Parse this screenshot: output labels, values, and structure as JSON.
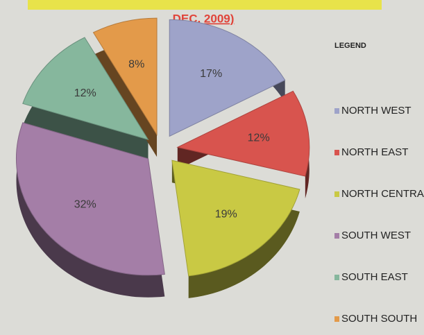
{
  "chart_data": {
    "type": "pie",
    "title": "DEC, 2009)",
    "legend_title": "LEGEND",
    "categories": [
      "NORTH WEST",
      "NORTH EAST",
      "NORTH CENTRAL",
      "SOUTH WEST",
      "SOUTH EAST",
      "SOUTH SOUTH"
    ],
    "values": [
      17,
      12,
      19,
      32,
      12,
      8
    ],
    "value_labels": [
      "17%",
      "12%",
      "19%",
      "32%",
      "12%",
      "8%"
    ],
    "colors": [
      "#9ea3c9",
      "#d8544e",
      "#c9c944",
      "#a47ea7",
      "#86b79d",
      "#e39a4a"
    ],
    "legend": "right"
  }
}
